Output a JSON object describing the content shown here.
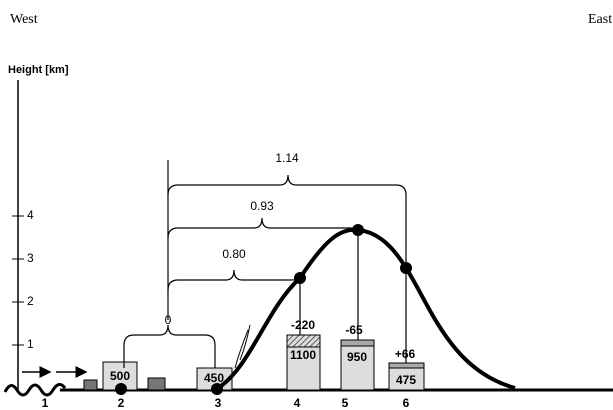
{
  "header": {
    "west": "West",
    "east": "East"
  },
  "axis": {
    "label": "Height [km]",
    "ticks": [
      "1",
      "2",
      "3",
      "4"
    ]
  },
  "stations": [
    "1",
    "2",
    "3",
    "4",
    "5",
    "6"
  ],
  "boxes": [
    "500",
    "450",
    "1100",
    "950",
    "475"
  ],
  "changes": [
    "-220",
    "-65",
    "+66"
  ],
  "brackets": [
    "0",
    "0.80",
    "0.93",
    "1.14"
  ]
}
